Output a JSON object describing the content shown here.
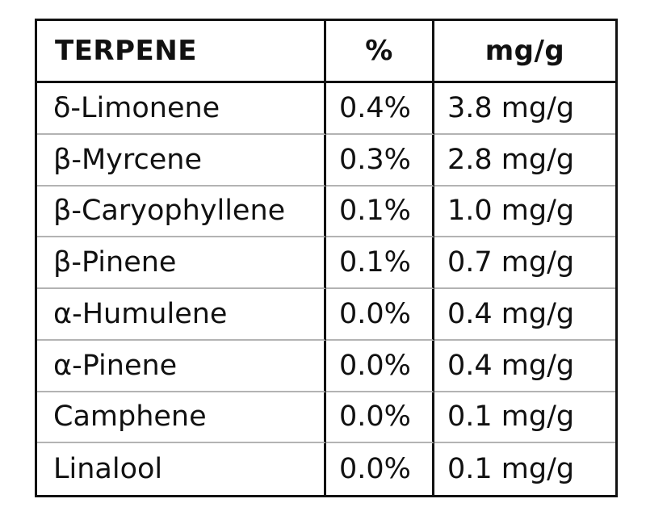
{
  "table": {
    "headers": {
      "terpene": "TERPENE",
      "percent": "%",
      "mg": "mg/g"
    },
    "rows": [
      {
        "terpene": "δ-Limonene",
        "percent": "0.4%",
        "mg": "3.8 mg/g"
      },
      {
        "terpene": "β-Myrcene",
        "percent": "0.3%",
        "mg": "2.8 mg/g"
      },
      {
        "terpene": "β-Caryophyllene",
        "percent": "0.1%",
        "mg": "1.0 mg/g"
      },
      {
        "terpene": "β-Pinene",
        "percent": "0.1%",
        "mg": "0.7 mg/g"
      },
      {
        "terpene": "α-Humulene",
        "percent": "0.0%",
        "mg": "0.4 mg/g"
      },
      {
        "terpene": "α-Pinene",
        "percent": "0.0%",
        "mg": "0.4 mg/g"
      },
      {
        "terpene": "Camphene",
        "percent": "0.0%",
        "mg": "0.1 mg/g"
      },
      {
        "terpene": "Linalool",
        "percent": "0.0%",
        "mg": "0.1 mg/g"
      }
    ]
  },
  "colors": {
    "border": "#111111",
    "row_divider": "#b3b3b3",
    "text": "#111111",
    "background": "#ffffff"
  }
}
